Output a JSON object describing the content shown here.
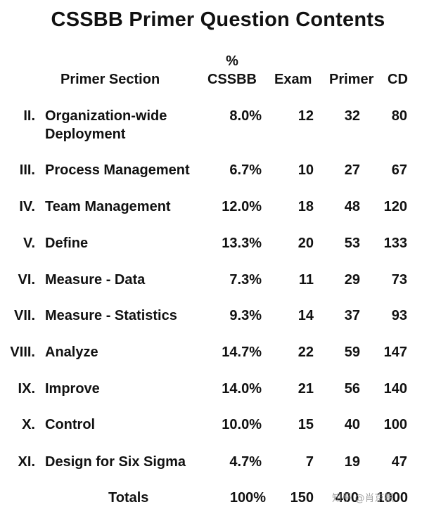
{
  "title": "CSSBB Primer Question Contents",
  "headers": {
    "section": "Primer Section",
    "pct_symbol": "%",
    "pct_label": "CSSBB",
    "exam": "Exam",
    "primer": "Primer",
    "cd": "CD"
  },
  "rows": [
    {
      "numeral": "II.",
      "section": "Organization-wide Deployment",
      "pct": "8.0%",
      "exam": "12",
      "primer": "32",
      "cd": "80"
    },
    {
      "numeral": "III.",
      "section": "Process Management",
      "pct": "6.7%",
      "exam": "10",
      "primer": "27",
      "cd": "67"
    },
    {
      "numeral": "IV.",
      "section": "Team Management",
      "pct": "12.0%",
      "exam": "18",
      "primer": "48",
      "cd": "120"
    },
    {
      "numeral": "V.",
      "section": "Define",
      "pct": "13.3%",
      "exam": "20",
      "primer": "53",
      "cd": "133"
    },
    {
      "numeral": "VI.",
      "section": "Measure - Data",
      "pct": "7.3%",
      "exam": "11",
      "primer": "29",
      "cd": "73"
    },
    {
      "numeral": "VII.",
      "section": "Measure - Statistics",
      "pct": "9.3%",
      "exam": "14",
      "primer": "37",
      "cd": "93"
    },
    {
      "numeral": "VIII.",
      "section": "Analyze",
      "pct": "14.7%",
      "exam": "22",
      "primer": "59",
      "cd": "147"
    },
    {
      "numeral": "IX.",
      "section": "Improve",
      "pct": "14.0%",
      "exam": "21",
      "primer": "56",
      "cd": "140"
    },
    {
      "numeral": "X.",
      "section": "Control",
      "pct": "10.0%",
      "exam": "15",
      "primer": "40",
      "cd": "100"
    },
    {
      "numeral": "XI.",
      "section": "Design for Six Sigma",
      "pct": "4.7%",
      "exam": "7",
      "primer": "19",
      "cd": "47"
    }
  ],
  "totals": {
    "label": "Totals",
    "pct": "100%",
    "exam": "150",
    "primer": "400",
    "cd": "1000"
  },
  "watermark": "知乎 @肖京根"
}
